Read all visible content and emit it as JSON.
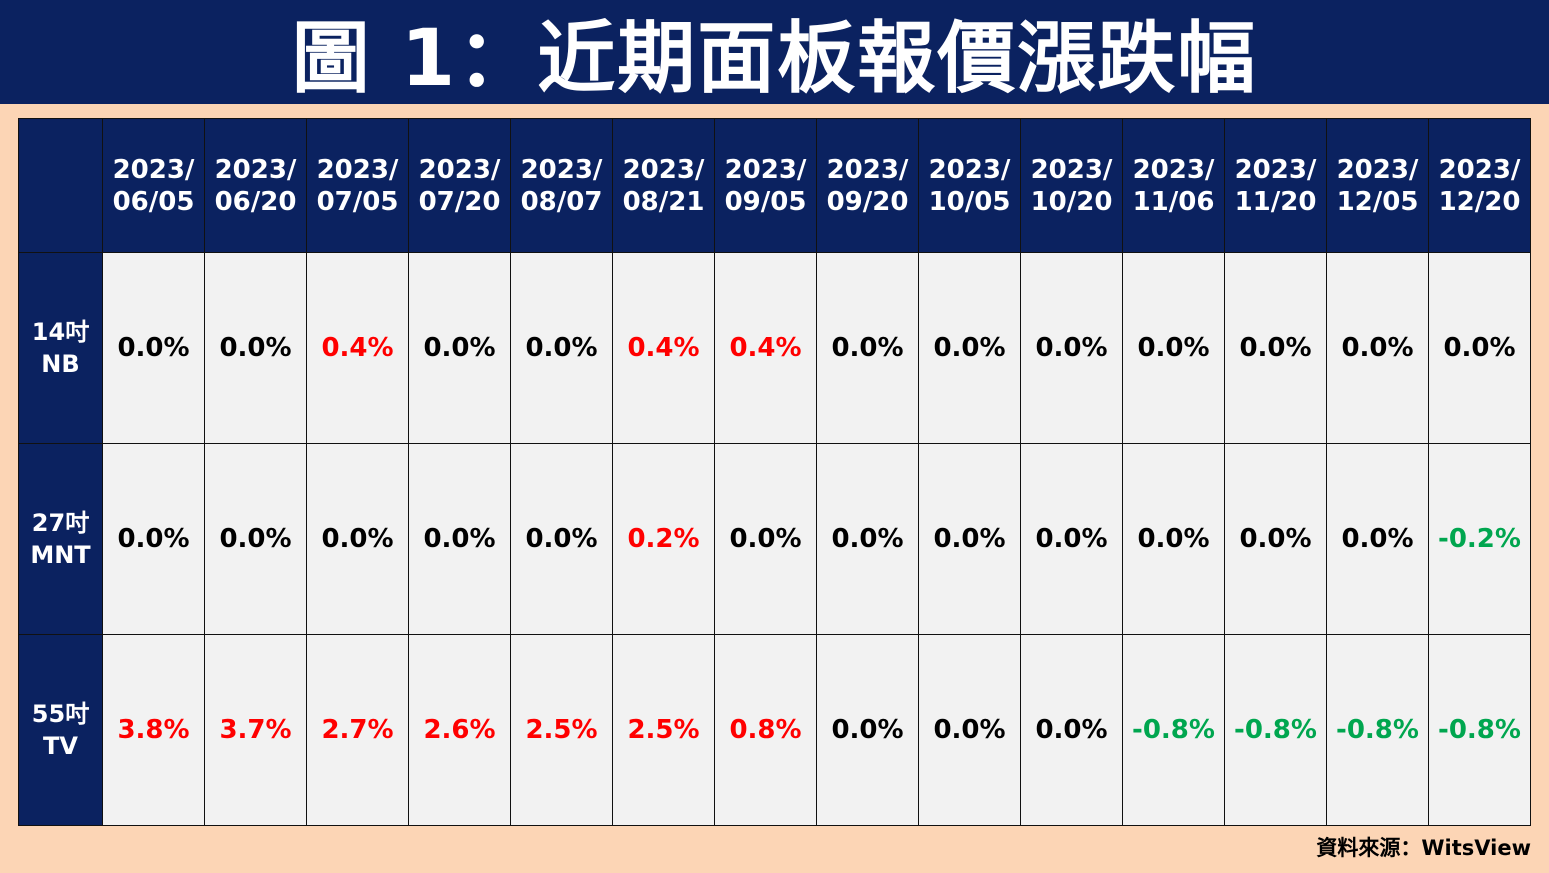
{
  "header": {
    "title": "圖 1：近期面板報價漲跌幅"
  },
  "chart_data": {
    "type": "table",
    "title": "圖 1：近期面板報價漲跌幅",
    "columns": [
      {
        "line1": "2023/",
        "line2": "06/05"
      },
      {
        "line1": "2023/",
        "line2": "06/20"
      },
      {
        "line1": "2023/",
        "line2": "07/05"
      },
      {
        "line1": "2023/",
        "line2": "07/20"
      },
      {
        "line1": "2023/",
        "line2": "08/07"
      },
      {
        "line1": "2023/",
        "line2": "08/21"
      },
      {
        "line1": "2023/",
        "line2": "09/05"
      },
      {
        "line1": "2023/",
        "line2": "09/20"
      },
      {
        "line1": "2023/",
        "line2": "10/05"
      },
      {
        "line1": "2023/",
        "line2": "10/20"
      },
      {
        "line1": "2023/",
        "line2": "11/06"
      },
      {
        "line1": "2023/",
        "line2": "11/20"
      },
      {
        "line1": "2023/",
        "line2": "12/05"
      },
      {
        "line1": "2023/",
        "line2": "12/20"
      }
    ],
    "rows": [
      {
        "line1": "14吋",
        "line2": "NB",
        "values": [
          "0.0%",
          "0.0%",
          "0.4%",
          "0.0%",
          "0.0%",
          "0.4%",
          "0.4%",
          "0.0%",
          "0.0%",
          "0.0%",
          "0.0%",
          "0.0%",
          "0.0%",
          "0.0%"
        ]
      },
      {
        "line1": "27吋",
        "line2": "MNT",
        "values": [
          "0.0%",
          "0.0%",
          "0.0%",
          "0.0%",
          "0.0%",
          "0.2%",
          "0.0%",
          "0.0%",
          "0.0%",
          "0.0%",
          "0.0%",
          "0.0%",
          "0.0%",
          "-0.2%"
        ]
      },
      {
        "line1": "55吋",
        "line2": "TV",
        "values": [
          "3.8%",
          "3.7%",
          "2.7%",
          "2.6%",
          "2.5%",
          "2.5%",
          "0.8%",
          "0.0%",
          "0.0%",
          "0.0%",
          "-0.8%",
          "-0.8%",
          "-0.8%",
          "-0.8%"
        ]
      }
    ],
    "colors": {
      "positive": "#ff0000",
      "negative": "#00a64f",
      "zero": "#000000",
      "header_bg": "#0b2260",
      "page_bg": "#fcd5b5"
    }
  },
  "source": "資料來源：WitsView"
}
